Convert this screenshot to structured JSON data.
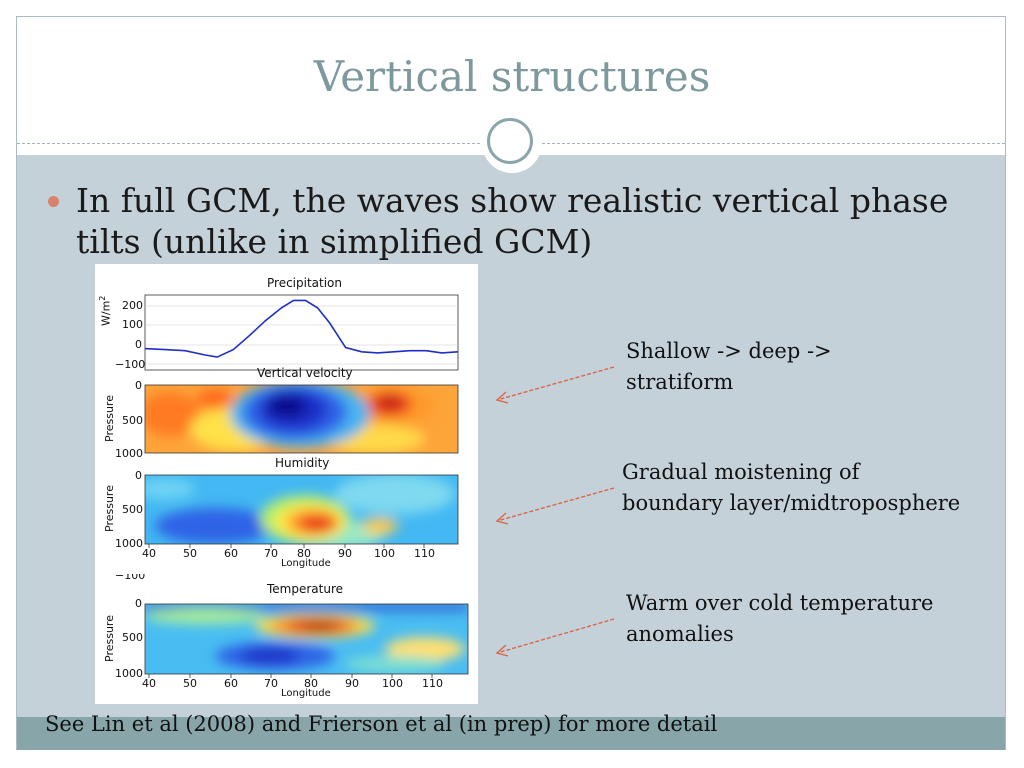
{
  "slide": {
    "title": "Vertical structures",
    "bullet": "In full GCM, the waves show realistic vertical phase tilts (unlike in simplified GCM)",
    "footer": "See Lin et al (2008) and Frierson et al (in prep) for more detail"
  },
  "annotations": [
    {
      "line1": "Shallow -> deep ->",
      "line2": "stratiform"
    },
    {
      "line1": "Gradual moistening of",
      "line2": "boundary layer/midtroposphere"
    },
    {
      "line1": "Warm over cold temperature",
      "line2": "anomalies"
    }
  ],
  "colors": {
    "title": "#7d999d",
    "body_background": "#c5d1d8",
    "footer_bar": "#88a6aa",
    "bullet": "#d9836d",
    "arrow": "#d9654b",
    "precip_line": "#1f2ec8"
  },
  "figure": {
    "precip_title": "Precipitation",
    "precip_ylabel": "W/m",
    "precip_ylabel_sup": "2",
    "precip_yticks": [
      "200",
      "100",
      "0",
      "−100"
    ],
    "vv_title": "Vertical velocity",
    "hum_title": "Humidity",
    "temp_title": "Temperature",
    "pressure_label": "Pressure",
    "pressure_ticks": [
      "0",
      "500",
      "1000"
    ],
    "x_ticks": [
      "40",
      "50",
      "60",
      "70",
      "80",
      "90",
      "100",
      "110"
    ],
    "x_label": "Longitude",
    "clipped_tick": "−100"
  },
  "chart_data": {
    "type": "line",
    "title": "Precipitation",
    "ylabel": "W/m2",
    "xlabel": "Longitude",
    "xlim": [
      40,
      118
    ],
    "ylim": [
      -100,
      250
    ],
    "x": [
      40,
      45,
      50,
      55,
      58,
      62,
      66,
      70,
      74,
      77,
      80,
      83,
      86,
      90,
      94,
      98,
      102,
      106,
      110,
      114,
      118
    ],
    "values": [
      0,
      -5,
      -10,
      -30,
      -40,
      -5,
      60,
      130,
      190,
      225,
      225,
      190,
      120,
      5,
      -15,
      -20,
      -15,
      -10,
      -10,
      -20,
      -15
    ]
  }
}
